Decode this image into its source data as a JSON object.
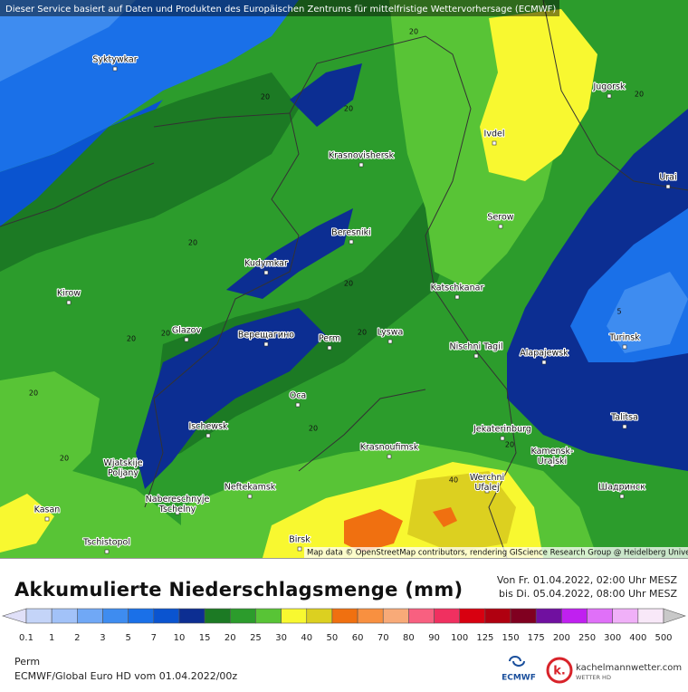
{
  "header": {
    "notice": "Dieser Service basiert auf Daten und Produkten des Europäischen Zentrums für mittelfristige Wettervorhersage (ECMWF)"
  },
  "map": {
    "attribution": "Map data © OpenStreetMap contributors, rendering GIScience Research Group @ Heidelberg University",
    "cities": [
      "Syktywkar",
      "Krasnovishersk",
      "Ivdel",
      "Jugorsk",
      "Urai",
      "Serow",
      "Beresniki",
      "Kudymkar",
      "Kirow",
      "Katschkanar",
      "Glazov",
      "Верещагино",
      "Perm",
      "Lyswa",
      "Nischni Tagil",
      "Alapajewsk",
      "Turinsk",
      "Oca",
      "Talitsa",
      "Ischewsk",
      "Jekaterinburg",
      "Krasnoufimsk",
      "Kamensk-\nUralski",
      "Wjatskije\nPoljany",
      "Neftekamsk",
      "Werchni\nUfalej",
      "Шадринск",
      "Nabereschnyje\nTschelny",
      "Kasan",
      "Tschistopol",
      "Birsk"
    ],
    "contour_labels": [
      "20",
      "20",
      "20",
      "20",
      "20",
      "20",
      "20",
      "20",
      "20",
      "20",
      "20",
      "20",
      "20",
      "5",
      "40"
    ]
  },
  "legend": {
    "title": "Akkumulierte Niederschlagsmenge (mm)",
    "from": "Von Fr. 01.04.2022, 02:00 Uhr MESZ",
    "to": "bis Di. 05.04.2022, 08:00 Uhr MESZ",
    "ticks": [
      "0.1",
      "1",
      "2",
      "3",
      "5",
      "7",
      "10",
      "15",
      "20",
      "25",
      "30",
      "40",
      "50",
      "60",
      "70",
      "80",
      "90",
      "100",
      "125",
      "150",
      "175",
      "200",
      "250",
      "300",
      "400",
      "500"
    ],
    "colors": [
      "#e0e0f8",
      "#c4d4f8",
      "#a2c2f8",
      "#70a8f6",
      "#3e8cf0",
      "#1a70e8",
      "#0a54d0",
      "#0c2e92",
      "#1c7a24",
      "#2c9c2c",
      "#58c436",
      "#f8f830",
      "#dcd020",
      "#f07010",
      "#f89040",
      "#f8aa78",
      "#f86080",
      "#f03060",
      "#d80010",
      "#b00010",
      "#800020",
      "#7010a0",
      "#c020f0",
      "#e070f8",
      "#f0b0f8",
      "#f8e8f8",
      "#c8c8c8"
    ]
  },
  "footer": {
    "location": "Perm",
    "model": "ECMWF/Global Euro HD vom  01.04.2022/00z",
    "ecmwf": "ECMWF",
    "brand_mark": "k.",
    "brand": "kachelmannwetter.com",
    "brand_sub": "WETTER HD"
  }
}
